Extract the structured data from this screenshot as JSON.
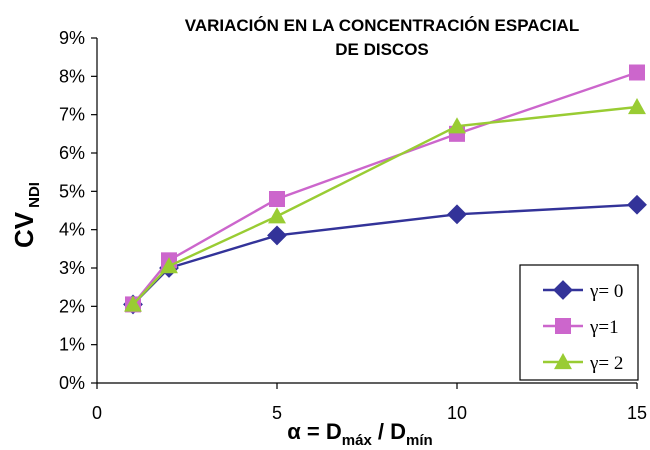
{
  "chart_data": {
    "type": "line",
    "title_lines": [
      "VARIACIÓN EN LA CONCENTRACIÓN ESPACIAL",
      "DE DISCOS"
    ],
    "xlabel": {
      "prefix": "α = D",
      "sub1": "máx",
      "mid": " / D",
      "sub2": "mín"
    },
    "ylabel": {
      "main": "CV",
      "sub": "NDI"
    },
    "xlim": [
      0,
      15
    ],
    "ylim": [
      0,
      9
    ],
    "xticks": [
      {
        "value": 0,
        "label": "0"
      },
      {
        "value": 5,
        "label": "5"
      },
      {
        "value": 10,
        "label": "10"
      },
      {
        "value": 15,
        "label": "15"
      }
    ],
    "yticks": [
      {
        "value": 0,
        "label": "0%"
      },
      {
        "value": 1,
        "label": "1%"
      },
      {
        "value": 2,
        "label": "2%"
      },
      {
        "value": 3,
        "label": "3%"
      },
      {
        "value": 4,
        "label": "4%"
      },
      {
        "value": 5,
        "label": "5%"
      },
      {
        "value": 6,
        "label": "6%"
      },
      {
        "value": 7,
        "label": "7%"
      },
      {
        "value": 8,
        "label": "8%"
      },
      {
        "value": 9,
        "label": "9%"
      }
    ],
    "x": [
      1,
      2,
      5,
      10,
      15
    ],
    "series": [
      {
        "name": "γ= 0",
        "values": [
          2.05,
          3.0,
          3.85,
          4.4,
          4.65
        ],
        "color": "#333399",
        "marker": "diamond"
      },
      {
        "name": "γ=1",
        "values": [
          2.05,
          3.2,
          4.8,
          6.5,
          8.1
        ],
        "color": "#cc66cc",
        "marker": "square"
      },
      {
        "name": "γ= 2",
        "values": [
          2.05,
          3.05,
          4.35,
          6.7,
          7.2
        ],
        "color": "#99cc33",
        "marker": "triangle"
      }
    ],
    "grid": false,
    "legend_position": "bottom-right"
  }
}
